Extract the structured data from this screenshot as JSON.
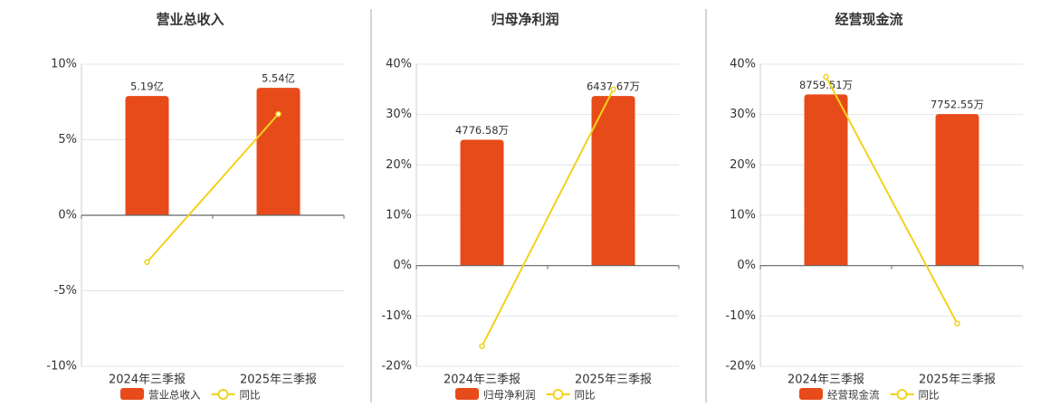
{
  "chart_data": [
    {
      "type": "bar-line",
      "title": "营业总收入",
      "categories": [
        "2024年三季报",
        "2025年三季报"
      ],
      "series": [
        {
          "name": "营业总收入",
          "color": "#e84b1a",
          "values": [
            5.19,
            5.54
          ],
          "value_labels": [
            "5.19亿",
            "5.54亿"
          ],
          "axis": "y2"
        },
        {
          "name": "同比",
          "color": "#f2d21a",
          "values": [
            -3.1,
            6.7
          ]
        }
      ],
      "ylim": [
        -10,
        10
      ],
      "yticks": [
        {
          "value": -10,
          "label": "-10%"
        },
        {
          "value": -5,
          "label": "-5%"
        },
        {
          "value": 0,
          "label": "0%"
        },
        {
          "value": 5,
          "label": "5%"
        },
        {
          "value": 10,
          "label": "10%"
        }
      ],
      "y2lim": [
        -6.57,
        6.57
      ],
      "grid": true
    },
    {
      "type": "bar-line",
      "title": "归母净利润",
      "categories": [
        "2024年三季报",
        "2025年三季报"
      ],
      "series": [
        {
          "name": "归母净利润",
          "color": "#e84b1a",
          "values": [
            4776.58,
            6437.67
          ],
          "value_labels": [
            "4776.58万",
            "6437.67万"
          ],
          "axis": "y2"
        },
        {
          "name": "同比",
          "color": "#f2d21a",
          "values": [
            -16,
            35
          ]
        }
      ],
      "ylim": [
        -20,
        40
      ],
      "yticks": [
        {
          "value": -20,
          "label": "-20%"
        },
        {
          "value": -10,
          "label": "-10%"
        },
        {
          "value": 0,
          "label": "0%"
        },
        {
          "value": 10,
          "label": "10%"
        },
        {
          "value": 20,
          "label": "20%"
        },
        {
          "value": 30,
          "label": "30%"
        },
        {
          "value": 40,
          "label": "40%"
        }
      ],
      "y2lim": [
        -3821,
        7643
      ],
      "grid": true
    },
    {
      "type": "bar-line",
      "title": "经营现金流",
      "categories": [
        "2024年三季报",
        "2025年三季报"
      ],
      "series": [
        {
          "name": "经营现金流",
          "color": "#e84b1a",
          "values": [
            8759.51,
            7752.55
          ],
          "value_labels": [
            "8759.51万",
            "7752.55万"
          ],
          "axis": "y2"
        },
        {
          "name": "同比",
          "color": "#f2d21a",
          "values": [
            37.5,
            -11.5
          ]
        }
      ],
      "ylim": [
        -20,
        40
      ],
      "yticks": [
        {
          "value": -20,
          "label": "-20%"
        },
        {
          "value": -10,
          "label": "-10%"
        },
        {
          "value": 0,
          "label": "0%"
        },
        {
          "value": 10,
          "label": "10%"
        },
        {
          "value": 20,
          "label": "20%"
        },
        {
          "value": 30,
          "label": "30%"
        },
        {
          "value": 40,
          "label": "40%"
        }
      ],
      "y2lim": [
        -5152,
        10305
      ],
      "grid": true
    }
  ]
}
